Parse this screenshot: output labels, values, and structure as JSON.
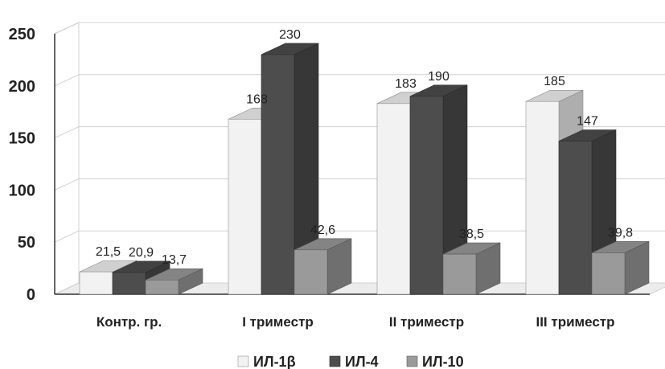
{
  "chart_data": {
    "type": "bar",
    "title": "",
    "xlabel": "",
    "ylabel": "",
    "categories": [
      "Контр. гр.",
      "I триместр",
      "II триместр",
      "III триместр"
    ],
    "ylim": [
      0,
      250
    ],
    "yticks": [
      "0",
      "50",
      "100",
      "150",
      "200",
      "250"
    ],
    "grid": true,
    "legend_position": "bottom",
    "series": [
      {
        "name": "ИЛ-1β",
        "values": [
          21.5,
          168,
          183,
          185
        ],
        "labels": [
          "21,5",
          "168",
          "183",
          "185"
        ],
        "color": "#f2f2f2"
      },
      {
        "name": "ИЛ-4",
        "values": [
          20.9,
          230,
          190,
          147
        ],
        "labels": [
          "20,9",
          "230",
          "190",
          "147"
        ],
        "color": "#4d4d4d"
      },
      {
        "name": "ИЛ-10",
        "values": [
          13.7,
          42.6,
          38.5,
          39.8
        ],
        "labels": [
          "13,7",
          "42,6",
          "38,5",
          "39,8"
        ],
        "color": "#9a9a9a"
      }
    ]
  }
}
